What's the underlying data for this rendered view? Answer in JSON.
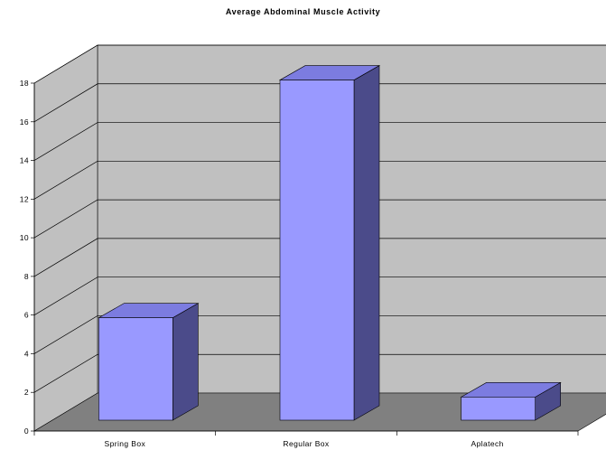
{
  "chart_data": {
    "type": "bar",
    "title": "Average Abdominal Muscle Activity",
    "categories": [
      "Spring Box",
      "Regular Box",
      "Aplatech"
    ],
    "values": [
      5.3,
      17.6,
      1.2
    ],
    "xlabel": "",
    "ylabel": "",
    "ylim": [
      0,
      18
    ],
    "yticks": [
      0,
      2,
      4,
      6,
      8,
      10,
      12,
      14,
      16,
      18
    ],
    "grid": true,
    "three_d": true,
    "colors": {
      "bar_front": "#9999ff",
      "bar_side": "#4b4b8a",
      "bar_top": "#7c7ce0",
      "back_wall": "#c0c0c0",
      "side_wall": "#c0c0c0",
      "floor": "#808080",
      "outline": "#000000"
    }
  }
}
